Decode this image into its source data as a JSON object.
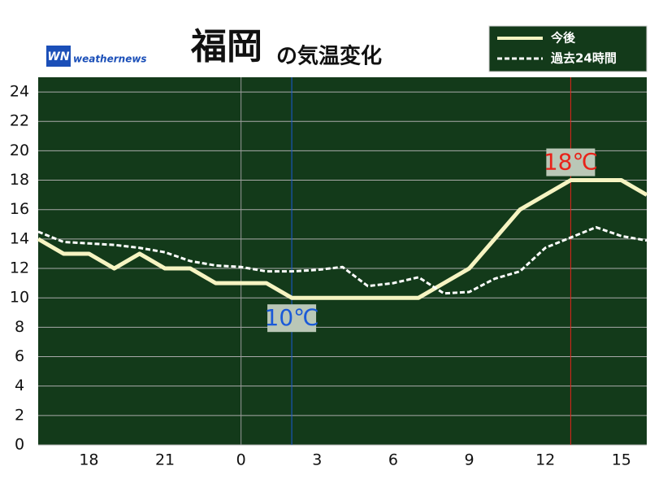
{
  "chart_data": {
    "type": "line",
    "title": "福岡",
    "title_suffix": "の気温変化",
    "logo": {
      "mark": "WN",
      "text": "weathernews"
    },
    "x": [
      16,
      17,
      18,
      19,
      20,
      21,
      22,
      23,
      24,
      25,
      26,
      27,
      28,
      29,
      30,
      31,
      32,
      33,
      34,
      35,
      36,
      37,
      38,
      39,
      40
    ],
    "series": [
      {
        "name": "今後",
        "color": "#f6f4c2",
        "dashed": false,
        "values": [
          14,
          13,
          13,
          12,
          13,
          12,
          12,
          11,
          11,
          11,
          10,
          10,
          10,
          10,
          10,
          10,
          11,
          12,
          14,
          16,
          17,
          18,
          18,
          18,
          17
        ]
      },
      {
        "name": "過去24時間",
        "color": "#ffffff",
        "dashed": true,
        "values": [
          14.5,
          13.8,
          13.7,
          13.6,
          13.4,
          13.1,
          12.5,
          12.2,
          12.1,
          11.8,
          11.8,
          11.9,
          12.1,
          10.8,
          11.0,
          11.4,
          10.3,
          10.4,
          11.3,
          11.8,
          13.4,
          14.1,
          14.8,
          14.2,
          13.9
        ]
      }
    ],
    "xlim": [
      16,
      40
    ],
    "xticks": [
      18,
      21,
      {
        "value": 24,
        "label": "0"
      },
      {
        "value": 27,
        "label": "3"
      },
      {
        "value": 30,
        "label": "6"
      },
      {
        "value": 33,
        "label": "9"
      },
      {
        "value": 36,
        "label": "12"
      },
      {
        "value": 39,
        "label": "15"
      }
    ],
    "day_boundary": 24,
    "ylim": [
      0,
      25
    ],
    "yticks": [
      0,
      2,
      4,
      6,
      8,
      10,
      12,
      14,
      16,
      18,
      20,
      22,
      24
    ],
    "grid": true,
    "legend": "top-right",
    "annotations": [
      {
        "x": 26,
        "y": 10,
        "label": "10℃",
        "color": "#1a5ad8",
        "position": "below"
      },
      {
        "x": 37,
        "y": 18,
        "label": "18℃",
        "color": "#e8231a",
        "position": "above"
      }
    ]
  }
}
